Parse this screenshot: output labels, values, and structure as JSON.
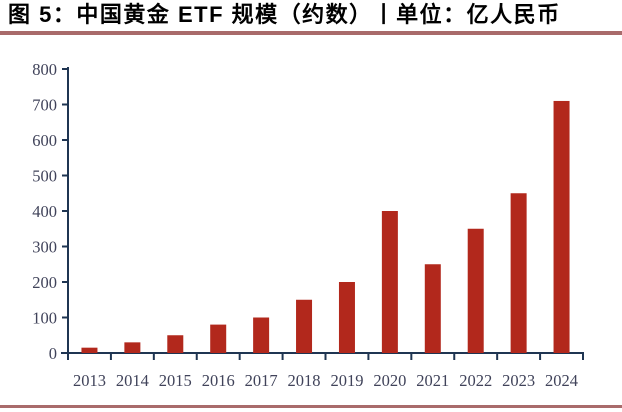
{
  "header": {
    "title": "图 5：中国黄金 ETF 规模（约数）丨单位：亿人民币"
  },
  "colors": {
    "background": "#FFFFFF",
    "title_text": "#000000",
    "divider": "#A96B6B",
    "bar": "#B2281C",
    "axis": "#1F3552",
    "tick_label": "#40435A"
  },
  "chart_data": {
    "type": "bar",
    "title": "图 5：中国黄金 ETF 规模（约数）丨单位：亿人民币",
    "unit_label": "单位：亿人民币",
    "categories": [
      "2013",
      "2014",
      "2015",
      "2016",
      "2017",
      "2018",
      "2019",
      "2020",
      "2021",
      "2022",
      "2023",
      "2024"
    ],
    "values": [
      15,
      30,
      50,
      80,
      100,
      150,
      200,
      400,
      250,
      350,
      450,
      710
    ],
    "xlabel": "",
    "ylabel": "",
    "ylim": [
      0,
      800
    ],
    "yticks": [
      0,
      100,
      200,
      300,
      400,
      500,
      600,
      700,
      800
    ],
    "grid": false,
    "legend": "none",
    "bar_color": "#B2281C"
  }
}
